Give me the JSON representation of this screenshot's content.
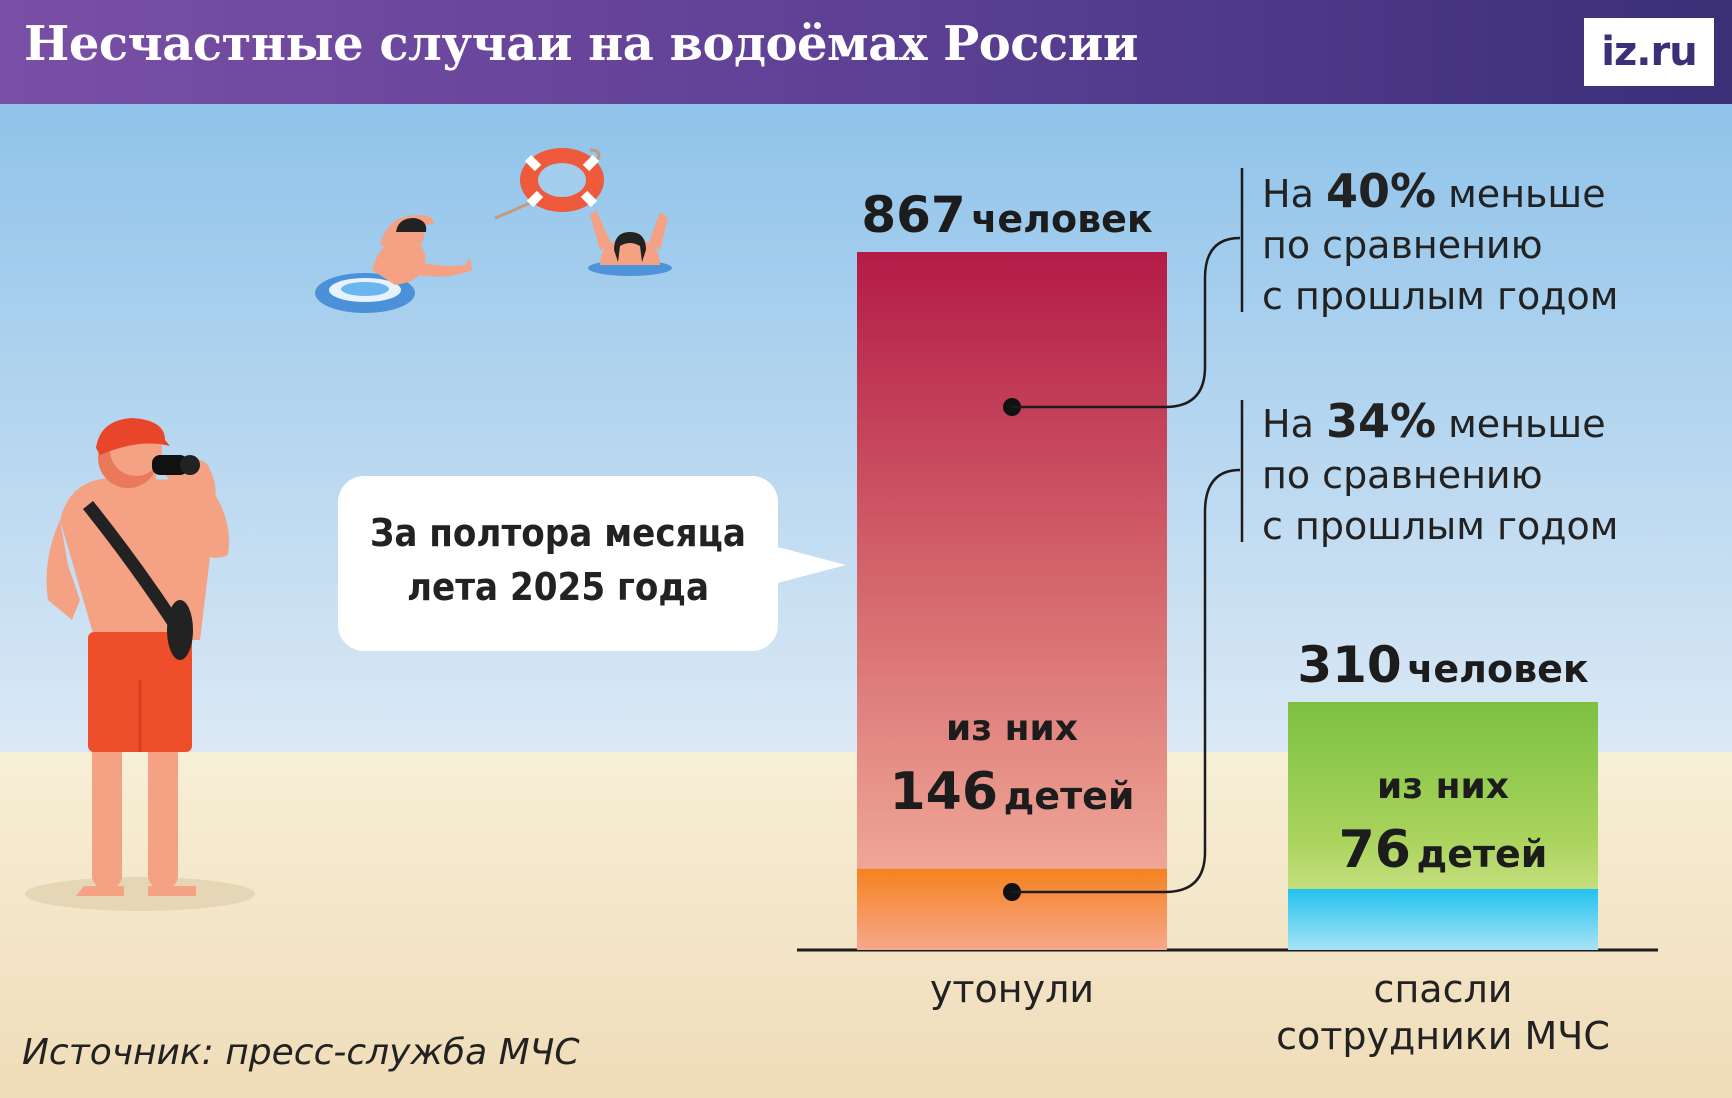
{
  "header": {
    "title": "Несчастные случаи на водоёмах России",
    "logo": "iz.ru"
  },
  "bubble": {
    "line1": "За полтора месяца",
    "line2": "лета 2025 года"
  },
  "source": "Источник: пресс-служба МЧС",
  "annotations": [
    {
      "prefix": "На ",
      "value": "40%",
      "suffix": " меньше",
      "line2": "по сравнению",
      "line3": "с прошлым годом"
    },
    {
      "prefix": "На ",
      "value": "34%",
      "suffix": " меньше",
      "line2": "по сравнению",
      "line3": "с прошлым годом"
    }
  ],
  "colors": {
    "header_start": "#7a4fa6",
    "header_end": "#3b2f78",
    "drowned_top": "#b31b46",
    "drowned_bottom": "#f5b09a",
    "drowned_children": "#f58220",
    "rescued_top": "#7dc242",
    "rescued_bottom": "#dfe89a",
    "rescued_children": "#29c4ec",
    "sky": "#a3cdec",
    "sand": "#f6ecd2"
  },
  "chart_data": {
    "type": "bar",
    "categories": [
      "утонули",
      "спасли\nсотрудники МЧС"
    ],
    "category_lines": [
      [
        "утонули"
      ],
      [
        "спасли",
        "сотрудники МЧС"
      ]
    ],
    "series": [
      {
        "values": [
          867,
          310
        ]
      },
      {
        "values": [
          146,
          76
        ]
      }
    ],
    "unit": "человек",
    "children_prefix": "из них",
    "children_unit": "детей",
    "value_labels": [
      "867",
      "310"
    ],
    "children_labels": [
      "146",
      "76"
    ],
    "yearly_change_percent": [
      -40,
      -34
    ],
    "ylim": [
      0,
      867
    ]
  }
}
